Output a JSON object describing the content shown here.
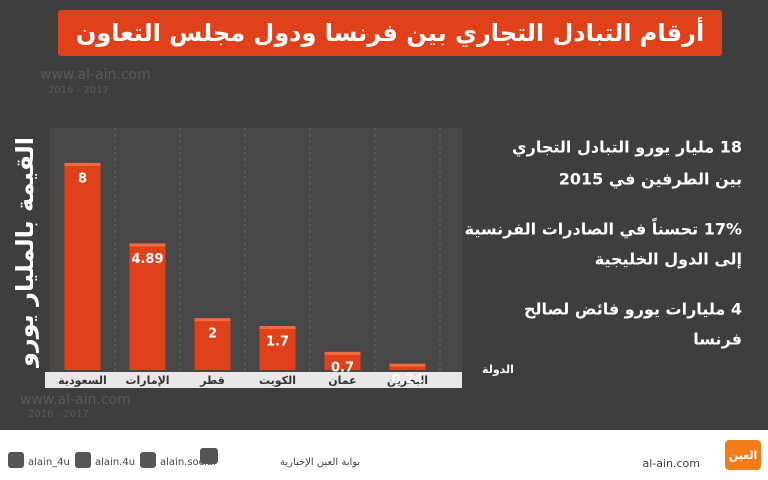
{
  "chart_data": {
    "type": "bar",
    "title": "أرقام التبادل التجاري بين فرنسا ودول مجلس التعاون",
    "y_label": "القيمة بالمليار يورو",
    "x_label": "الدولة",
    "categories": [
      "السعودية",
      "الإمارات",
      "قطر",
      "الكويت",
      "عمان",
      "البحرين"
    ],
    "values": [
      8,
      4.89,
      2,
      1.7,
      0.7,
      0.24
    ],
    "color": "#e0401a",
    "ylim": [
      0,
      8.5
    ],
    "annotations": [
      "18 مليار يورو التبادل التجاري",
      "بين الطرفين في 2015",
      "17% تحسناً في الصادرات الفرنسية",
      "إلى الدول الخليجية",
      "4 مليارات يورو فائض لصالح",
      "فرنسا"
    ],
    "watermark": [
      "www.al-ain.com",
      "2016 - 2017"
    ]
  },
  "footer": {
    "handles": [
      "alain_4u",
      "alain.4u",
      "alain.social",
      "بوابة العين الإخبارية"
    ],
    "site": "al-ain.com",
    "logo": "العين"
  }
}
